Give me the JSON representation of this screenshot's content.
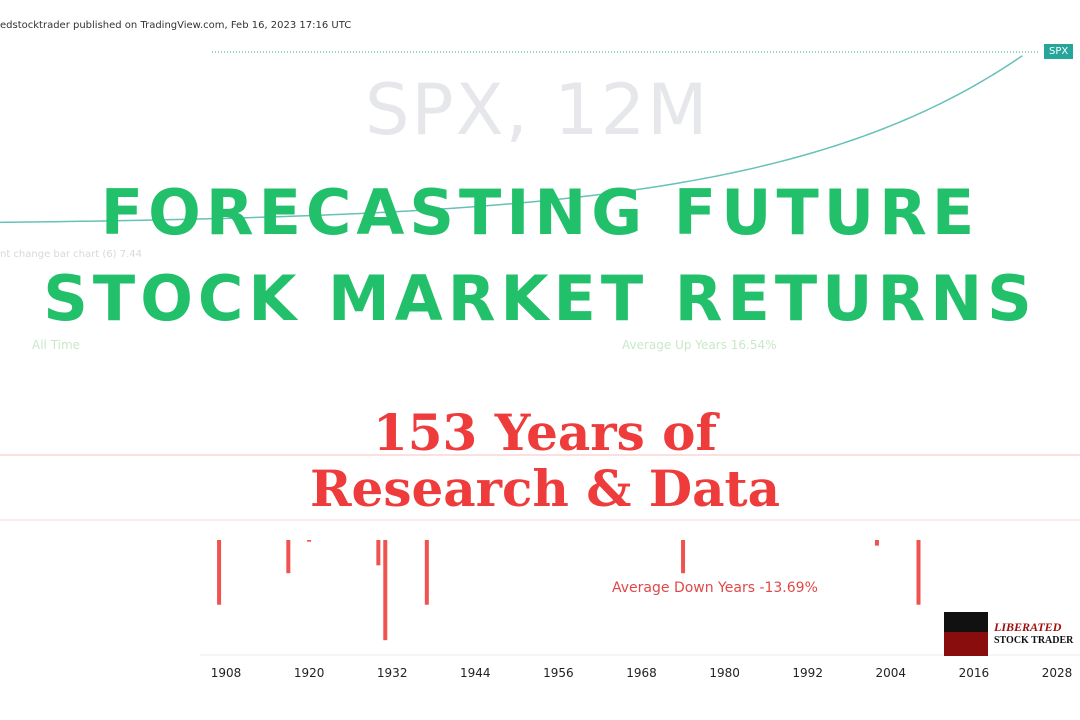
{
  "header": {
    "published": "edstocktrader published on TradingView.com, Feb 16, 2023 17:16 UTC",
    "watermark": "SPX, 12M",
    "symbol_tag": "SPX"
  },
  "faint_labels": {
    "indicator": "nt change bar chart (6)  7.44",
    "all_time": "All Time",
    "avg_up": "Average Up Years 16.54%"
  },
  "title": {
    "line1": "FORECASTING FUTURE",
    "line2": "STOCK MARKET RETURNS"
  },
  "subtitle": {
    "line1": "153 Years of",
    "line2": "Research & Data"
  },
  "logo": {
    "line1": "LIBERATED",
    "line2": "STOCK TRADER"
  },
  "colors": {
    "title": "#22c06a",
    "subtitle": "#ee3b3b",
    "up": "#26a69a",
    "down": "#ef5350"
  },
  "chart_data": {
    "type": "bar",
    "xlabel": "",
    "ylabel": "",
    "x_ticks": [
      "1908",
      "1920",
      "1932",
      "1944",
      "1956",
      "1968",
      "1980",
      "1992",
      "2004",
      "2016",
      "2028"
    ],
    "xlim": [
      1908,
      2028
    ],
    "series": [
      {
        "values_label": "down years",
        "x": [
          1907,
          1917,
          1920,
          1930,
          1931,
          1937,
          1974,
          2002,
          2008
        ],
        "values": [
          -38,
          -30,
          -22,
          -28,
          -47,
          -38,
          -30,
          -23,
          -38
        ]
      }
    ],
    "annotations": [
      "Average Down Years -13.69%"
    ],
    "grid": true
  }
}
